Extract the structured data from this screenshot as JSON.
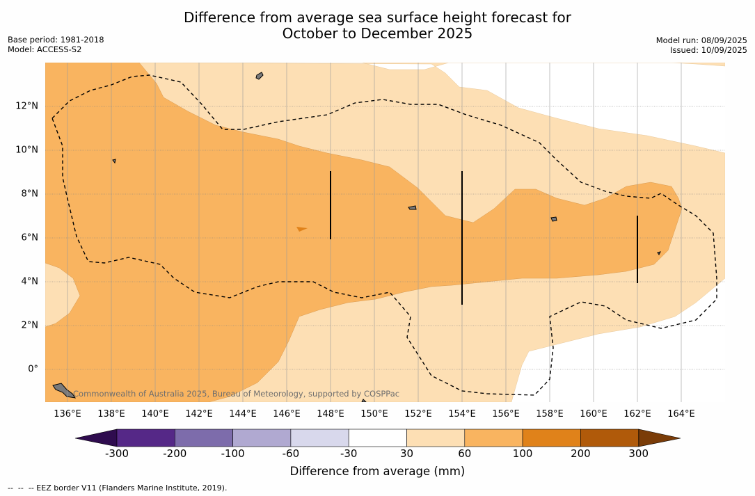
{
  "title_line1": "Difference from average sea surface height forecast for",
  "title_line2": "October to December 2025",
  "meta_left": [
    "Base period: 1981-2018",
    "Model: ACCESS-S2"
  ],
  "meta_right": [
    "Model run: 08/09/2025",
    "Issued: 10/09/2025"
  ],
  "attribution": "Commonwealth of Australia 2025, Bureau of Meteorology, supported by COSPPac",
  "x_ticks": [
    "136°E",
    "138°E",
    "140°E",
    "142°E",
    "144°E",
    "146°E",
    "148°E",
    "150°E",
    "152°E",
    "154°E",
    "156°E",
    "158°E",
    "160°E",
    "162°E",
    "164°E"
  ],
  "y_ticks": [
    "12°N",
    "10°N",
    "8°N",
    "6°N",
    "4°N",
    "2°N",
    "0°"
  ],
  "colorbar": {
    "label": "Difference from average (mm)",
    "ticks": [
      "-300",
      "-200",
      "-100",
      "-60",
      "-30",
      "30",
      "60",
      "100",
      "200",
      "300"
    ],
    "colors": [
      "#552887",
      "#7d6cab",
      "#b0a9d1",
      "#d8d8ec",
      "#ffffff",
      "#fddfb4",
      "#f9b460",
      "#e0821a",
      "#b05a0a"
    ],
    "under_color": "#2f0c4f",
    "over_color": "#7a3c08"
  },
  "footnote": "--  --  -- EEZ border V11 (Flanders Marine Institute, 2019).",
  "map_colors": {
    "class_30_60": "#fddfb4",
    "class_60_100": "#f9b460",
    "class_100_200": "#e0821a"
  },
  "map_extent": {
    "lon": [
      135,
      166
    ],
    "lat": [
      -1.5,
      14
    ]
  }
}
